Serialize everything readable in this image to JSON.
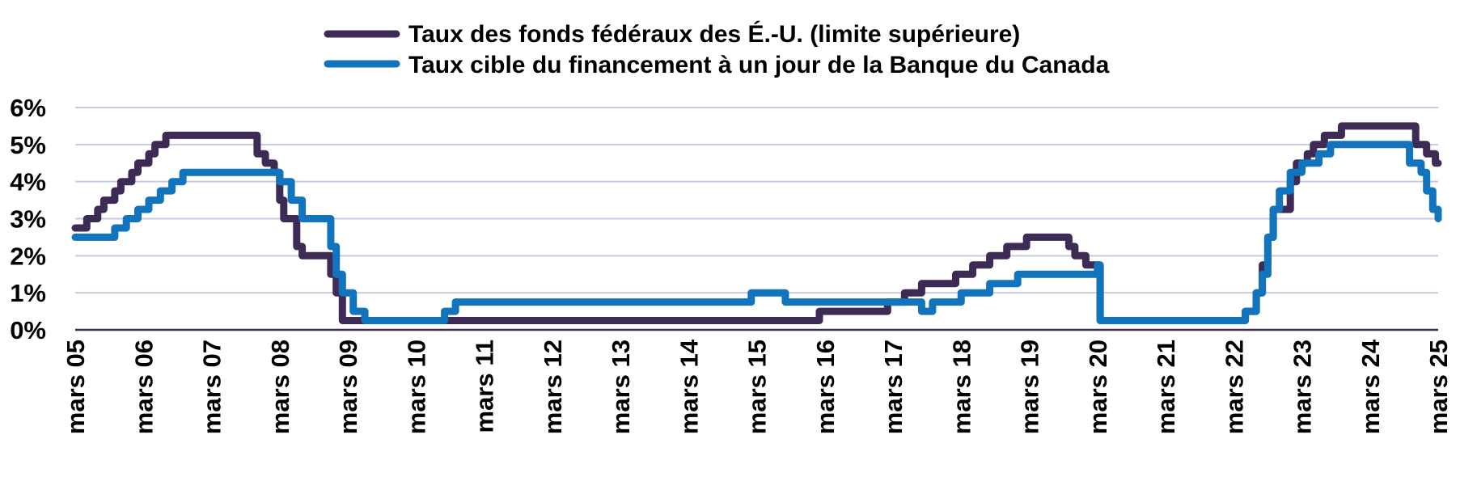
{
  "chart_data": {
    "type": "line",
    "title": "",
    "xlabel": "",
    "ylabel": "",
    "ylim": [
      0,
      6
    ],
    "xlim": [
      2005.0,
      2025.0
    ],
    "grid": true,
    "legend": {
      "placement": "top-center",
      "entries": [
        "Taux des fonds fédéraux des É.-U. (limite supérieure)",
        "Taux cible du financement à un jour de la Banque du Canada"
      ]
    },
    "y_ticks": [
      {
        "value": 0,
        "label": "0%"
      },
      {
        "value": 1,
        "label": "1%"
      },
      {
        "value": 2,
        "label": "2%"
      },
      {
        "value": 3,
        "label": "3%"
      },
      {
        "value": 4,
        "label": "4%"
      },
      {
        "value": 5,
        "label": "5%"
      },
      {
        "value": 6,
        "label": "6%"
      }
    ],
    "x_ticks": [
      {
        "value": 2005,
        "label": "mars 05"
      },
      {
        "value": 2006,
        "label": "mars 06"
      },
      {
        "value": 2007,
        "label": "mars 07"
      },
      {
        "value": 2008,
        "label": "mars 08"
      },
      {
        "value": 2009,
        "label": "mars 09"
      },
      {
        "value": 2010,
        "label": "mars 10"
      },
      {
        "value": 2011,
        "label": "mars 11"
      },
      {
        "value": 2012,
        "label": "mars 12"
      },
      {
        "value": 2013,
        "label": "mars 13"
      },
      {
        "value": 2014,
        "label": "mars 14"
      },
      {
        "value": 2015,
        "label": "mars 15"
      },
      {
        "value": 2016,
        "label": "mars 16"
      },
      {
        "value": 2017,
        "label": "mars 17"
      },
      {
        "value": 2018,
        "label": "mars 18"
      },
      {
        "value": 2019,
        "label": "mars 19"
      },
      {
        "value": 2020,
        "label": "mars 20"
      },
      {
        "value": 2021,
        "label": "mars 21"
      },
      {
        "value": 2022,
        "label": "mars 22"
      },
      {
        "value": 2023,
        "label": "mars 23"
      },
      {
        "value": 2024,
        "label": "mars 24"
      },
      {
        "value": 2025,
        "label": "mars 25"
      }
    ],
    "series": [
      {
        "name": "Taux des fonds fédéraux des É.-U. (limite supérieure)",
        "color": "#3d2b56",
        "x": [
          2005.0,
          2005.17,
          2005.33,
          2005.42,
          2005.58,
          2005.67,
          2005.83,
          2005.92,
          2006.08,
          2006.17,
          2006.33,
          2006.42,
          2006.5,
          2007.67,
          2007.79,
          2007.92,
          2008.0,
          2008.06,
          2008.25,
          2008.33,
          2008.75,
          2008.83,
          2008.92,
          2009.0,
          2015.92,
          2016.92,
          2017.17,
          2017.42,
          2017.92,
          2018.17,
          2018.42,
          2018.67,
          2018.96,
          2019.58,
          2019.67,
          2019.83,
          2020.0,
          2020.04,
          2022.17,
          2022.33,
          2022.42,
          2022.5,
          2022.58,
          2022.83,
          2022.92,
          2023.08,
          2023.17,
          2023.33,
          2023.58,
          2024.67,
          2024.83,
          2024.96,
          2025.0
        ],
        "values": [
          2.75,
          3.0,
          3.25,
          3.5,
          3.75,
          4.0,
          4.25,
          4.5,
          4.75,
          5.0,
          5.25,
          5.25,
          5.25,
          4.75,
          4.5,
          4.25,
          3.5,
          3.0,
          2.25,
          2.0,
          1.5,
          1.0,
          0.25,
          0.25,
          0.5,
          0.75,
          1.0,
          1.25,
          1.5,
          1.75,
          2.0,
          2.25,
          2.5,
          2.25,
          2.0,
          1.75,
          1.75,
          0.25,
          0.5,
          1.0,
          1.75,
          2.5,
          3.25,
          4.0,
          4.5,
          4.75,
          5.0,
          5.25,
          5.5,
          5.0,
          4.75,
          4.5,
          4.5
        ]
      },
      {
        "name": "Taux cible du financement à un jour de la Banque du Canada",
        "color": "#1274bc",
        "x": [
          2005.0,
          2005.58,
          2005.75,
          2005.92,
          2006.08,
          2006.25,
          2006.42,
          2006.58,
          2008.0,
          2008.17,
          2008.33,
          2008.75,
          2008.83,
          2008.92,
          2009.08,
          2009.25,
          2010.33,
          2010.42,
          2010.58,
          2014.92,
          2015.42,
          2017.42,
          2017.58,
          2018.0,
          2018.42,
          2018.83,
          2020.0,
          2020.04,
          2022.08,
          2022.17,
          2022.33,
          2022.42,
          2022.5,
          2022.58,
          2022.67,
          2022.83,
          2023.0,
          2023.25,
          2023.42,
          2024.42,
          2024.58,
          2024.75,
          2024.83,
          2024.92,
          2025.0
        ],
        "values": [
          2.5,
          2.75,
          3.0,
          3.25,
          3.5,
          3.75,
          4.0,
          4.25,
          4.0,
          3.5,
          3.0,
          2.25,
          1.5,
          1.0,
          0.5,
          0.25,
          0.25,
          0.5,
          0.75,
          1.0,
          0.75,
          0.5,
          0.75,
          1.0,
          1.25,
          1.5,
          1.75,
          0.25,
          0.25,
          0.5,
          1.0,
          1.5,
          2.5,
          3.25,
          3.75,
          4.25,
          4.5,
          4.75,
          5.0,
          5.0,
          4.5,
          4.25,
          3.75,
          3.25,
          3.0
        ]
      }
    ]
  }
}
